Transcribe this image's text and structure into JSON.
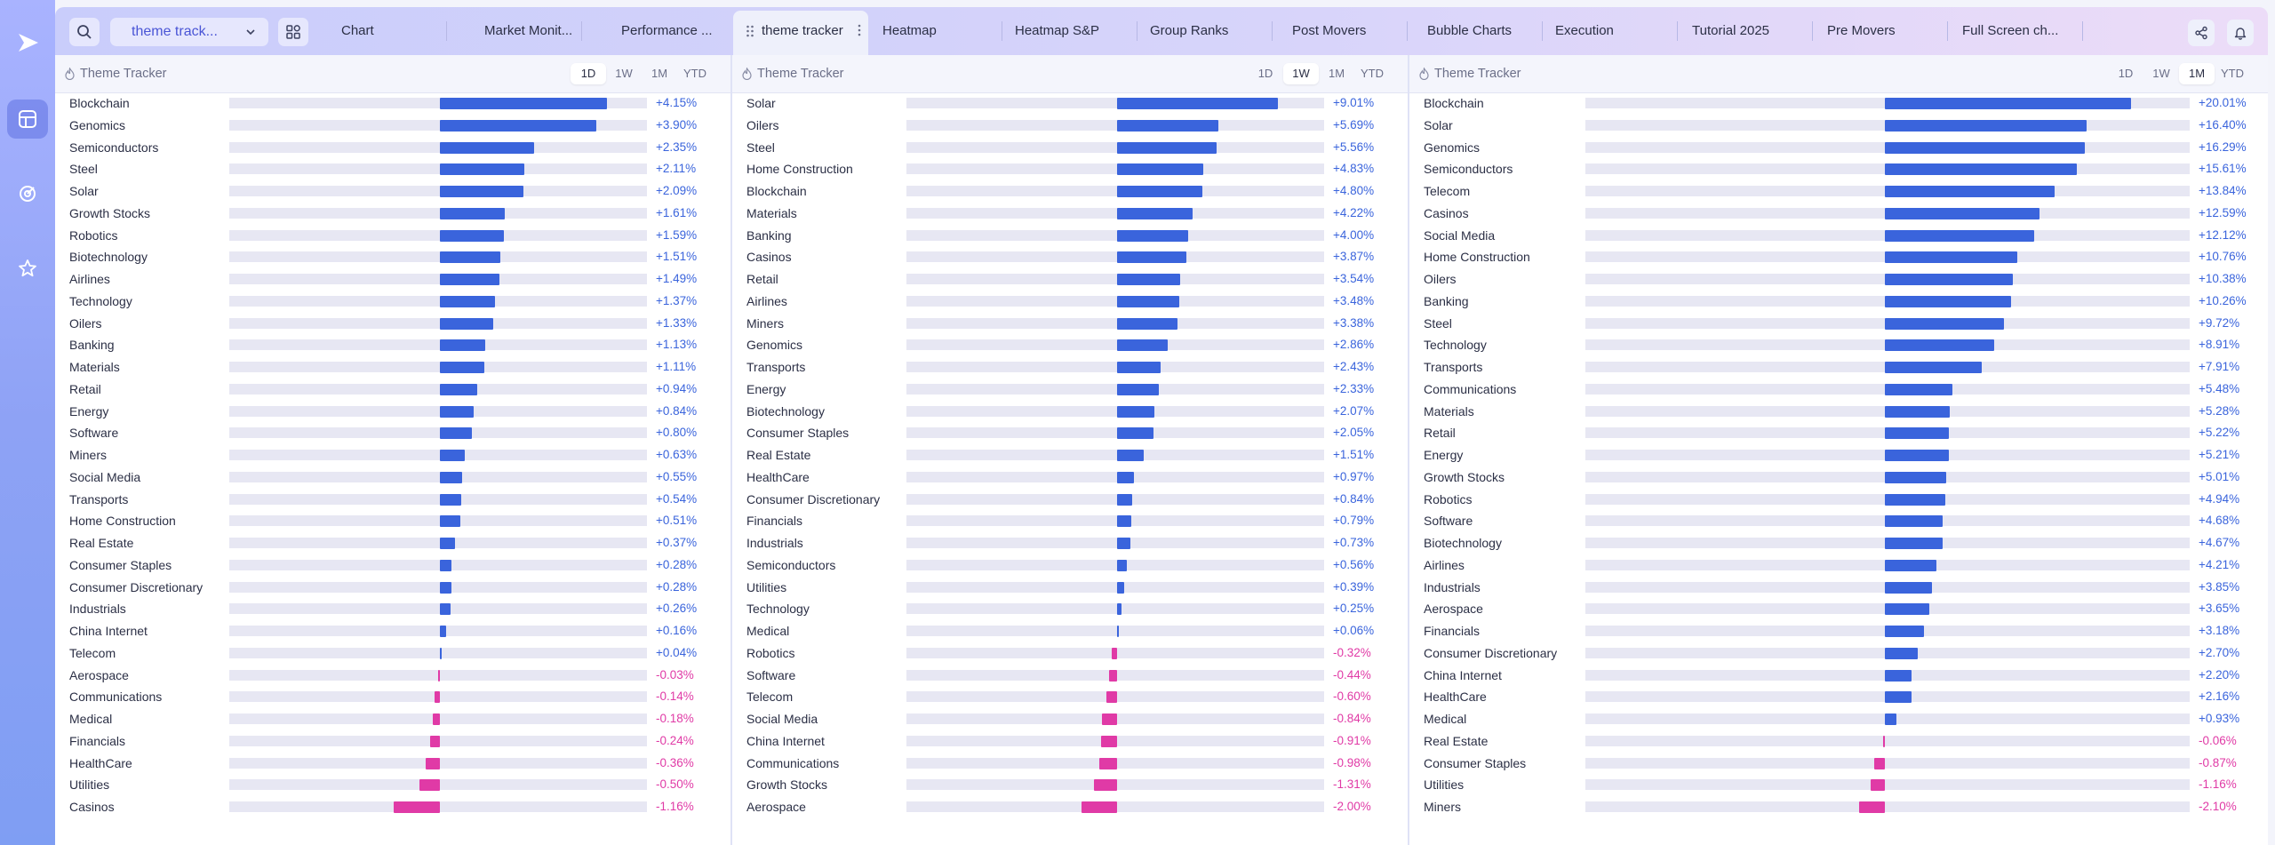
{
  "app": {
    "theme_selector": "theme track...",
    "tabs": [
      "Chart",
      "Market Monit...",
      "Performance ...",
      "theme tracker",
      "Heatmap",
      "Heatmap S&P",
      "Group Ranks",
      "Post Movers",
      "Bubble Charts",
      "Execution",
      "Tutorial 2025",
      "Pre Movers",
      "Full Screen ch..."
    ],
    "active_tab": "theme tracker"
  },
  "colors": {
    "positive": "#3a64dc",
    "negative": "#e03aa6",
    "track": "#e7e7f3"
  },
  "panels": [
    {
      "title": "Theme Tracker",
      "ranges": [
        "1D",
        "1W",
        "1M",
        "YTD"
      ],
      "selected_range": "1D",
      "scale_max": 5.0,
      "rows": [
        {
          "name": "Blockchain",
          "value": 4.15,
          "label": "+4.15%"
        },
        {
          "name": "Genomics",
          "value": 3.9,
          "label": "+3.90%"
        },
        {
          "name": "Semiconductors",
          "value": 2.35,
          "label": "+2.35%"
        },
        {
          "name": "Steel",
          "value": 2.11,
          "label": "+2.11%"
        },
        {
          "name": "Solar",
          "value": 2.09,
          "label": "+2.09%"
        },
        {
          "name": "Growth Stocks",
          "value": 1.61,
          "label": "+1.61%"
        },
        {
          "name": "Robotics",
          "value": 1.59,
          "label": "+1.59%"
        },
        {
          "name": "Biotechnology",
          "value": 1.51,
          "label": "+1.51%"
        },
        {
          "name": "Airlines",
          "value": 1.49,
          "label": "+1.49%"
        },
        {
          "name": "Technology",
          "value": 1.37,
          "label": "+1.37%"
        },
        {
          "name": "Oilers",
          "value": 1.33,
          "label": "+1.33%"
        },
        {
          "name": "Banking",
          "value": 1.13,
          "label": "+1.13%"
        },
        {
          "name": "Materials",
          "value": 1.11,
          "label": "+1.11%"
        },
        {
          "name": "Retail",
          "value": 0.94,
          "label": "+0.94%"
        },
        {
          "name": "Energy",
          "value": 0.84,
          "label": "+0.84%"
        },
        {
          "name": "Software",
          "value": 0.8,
          "label": "+0.80%"
        },
        {
          "name": "Miners",
          "value": 0.63,
          "label": "+0.63%"
        },
        {
          "name": "Social Media",
          "value": 0.55,
          "label": "+0.55%"
        },
        {
          "name": "Transports",
          "value": 0.54,
          "label": "+0.54%"
        },
        {
          "name": "Home Construction",
          "value": 0.51,
          "label": "+0.51%"
        },
        {
          "name": "Real Estate",
          "value": 0.37,
          "label": "+0.37%"
        },
        {
          "name": "Consumer Staples",
          "value": 0.28,
          "label": "+0.28%"
        },
        {
          "name": "Consumer Discretionary",
          "value": 0.28,
          "label": "+0.28%"
        },
        {
          "name": "Industrials",
          "value": 0.26,
          "label": "+0.26%"
        },
        {
          "name": "China Internet",
          "value": 0.16,
          "label": "+0.16%"
        },
        {
          "name": "Telecom",
          "value": 0.04,
          "label": "+0.04%"
        },
        {
          "name": "Aerospace",
          "value": -0.03,
          "label": "-0.03%"
        },
        {
          "name": "Communications",
          "value": -0.14,
          "label": "-0.14%"
        },
        {
          "name": "Medical",
          "value": -0.18,
          "label": "-0.18%"
        },
        {
          "name": "Financials",
          "value": -0.24,
          "label": "-0.24%"
        },
        {
          "name": "HealthCare",
          "value": -0.36,
          "label": "-0.36%"
        },
        {
          "name": "Utilities",
          "value": -0.5,
          "label": "-0.50%"
        },
        {
          "name": "Casinos",
          "value": -1.16,
          "label": "-1.16%"
        }
      ]
    },
    {
      "title": "Theme Tracker",
      "ranges": [
        "1D",
        "1W",
        "1M",
        "YTD"
      ],
      "selected_range": "1W",
      "scale_max": 11.0,
      "rows": [
        {
          "name": "Solar",
          "value": 9.01,
          "label": "+9.01%"
        },
        {
          "name": "Oilers",
          "value": 5.69,
          "label": "+5.69%"
        },
        {
          "name": "Steel",
          "value": 5.56,
          "label": "+5.56%"
        },
        {
          "name": "Home Construction",
          "value": 4.83,
          "label": "+4.83%"
        },
        {
          "name": "Blockchain",
          "value": 4.8,
          "label": "+4.80%"
        },
        {
          "name": "Materials",
          "value": 4.22,
          "label": "+4.22%"
        },
        {
          "name": "Banking",
          "value": 4.0,
          "label": "+4.00%"
        },
        {
          "name": "Casinos",
          "value": 3.87,
          "label": "+3.87%"
        },
        {
          "name": "Retail",
          "value": 3.54,
          "label": "+3.54%"
        },
        {
          "name": "Airlines",
          "value": 3.48,
          "label": "+3.48%"
        },
        {
          "name": "Miners",
          "value": 3.38,
          "label": "+3.38%"
        },
        {
          "name": "Genomics",
          "value": 2.86,
          "label": "+2.86%"
        },
        {
          "name": "Transports",
          "value": 2.43,
          "label": "+2.43%"
        },
        {
          "name": "Energy",
          "value": 2.33,
          "label": "+2.33%"
        },
        {
          "name": "Biotechnology",
          "value": 2.07,
          "label": "+2.07%"
        },
        {
          "name": "Consumer Staples",
          "value": 2.05,
          "label": "+2.05%"
        },
        {
          "name": "Real Estate",
          "value": 1.51,
          "label": "+1.51%"
        },
        {
          "name": "HealthCare",
          "value": 0.97,
          "label": "+0.97%"
        },
        {
          "name": "Consumer Discretionary",
          "value": 0.84,
          "label": "+0.84%"
        },
        {
          "name": "Financials",
          "value": 0.79,
          "label": "+0.79%"
        },
        {
          "name": "Industrials",
          "value": 0.73,
          "label": "+0.73%"
        },
        {
          "name": "Semiconductors",
          "value": 0.56,
          "label": "+0.56%"
        },
        {
          "name": "Utilities",
          "value": 0.39,
          "label": "+0.39%"
        },
        {
          "name": "Technology",
          "value": 0.25,
          "label": "+0.25%"
        },
        {
          "name": "Medical",
          "value": 0.06,
          "label": "+0.06%"
        },
        {
          "name": "Robotics",
          "value": -0.32,
          "label": "-0.32%"
        },
        {
          "name": "Software",
          "value": -0.44,
          "label": "-0.44%"
        },
        {
          "name": "Telecom",
          "value": -0.6,
          "label": "-0.60%"
        },
        {
          "name": "Social Media",
          "value": -0.84,
          "label": "-0.84%"
        },
        {
          "name": "China Internet",
          "value": -0.91,
          "label": "-0.91%"
        },
        {
          "name": "Communications",
          "value": -0.98,
          "label": "-0.98%"
        },
        {
          "name": "Growth Stocks",
          "value": -1.31,
          "label": "-1.31%"
        },
        {
          "name": "Aerospace",
          "value": -2.0,
          "label": "-2.00%"
        }
      ]
    },
    {
      "title": "Theme Tracker",
      "ranges": [
        "1D",
        "1W",
        "1M",
        "YTD"
      ],
      "selected_range": "1M",
      "scale_max": 24.0,
      "rows": [
        {
          "name": "Blockchain",
          "value": 20.01,
          "label": "+20.01%"
        },
        {
          "name": "Solar",
          "value": 16.4,
          "label": "+16.40%"
        },
        {
          "name": "Genomics",
          "value": 16.29,
          "label": "+16.29%"
        },
        {
          "name": "Semiconductors",
          "value": 15.61,
          "label": "+15.61%"
        },
        {
          "name": "Telecom",
          "value": 13.84,
          "label": "+13.84%"
        },
        {
          "name": "Casinos",
          "value": 12.59,
          "label": "+12.59%"
        },
        {
          "name": "Social Media",
          "value": 12.12,
          "label": "+12.12%"
        },
        {
          "name": "Home Construction",
          "value": 10.76,
          "label": "+10.76%"
        },
        {
          "name": "Oilers",
          "value": 10.38,
          "label": "+10.38%"
        },
        {
          "name": "Banking",
          "value": 10.26,
          "label": "+10.26%"
        },
        {
          "name": "Steel",
          "value": 9.72,
          "label": "+9.72%"
        },
        {
          "name": "Technology",
          "value": 8.91,
          "label": "+8.91%"
        },
        {
          "name": "Transports",
          "value": 7.91,
          "label": "+7.91%"
        },
        {
          "name": "Communications",
          "value": 5.48,
          "label": "+5.48%"
        },
        {
          "name": "Materials",
          "value": 5.28,
          "label": "+5.28%"
        },
        {
          "name": "Retail",
          "value": 5.22,
          "label": "+5.22%"
        },
        {
          "name": "Energy",
          "value": 5.21,
          "label": "+5.21%"
        },
        {
          "name": "Growth Stocks",
          "value": 5.01,
          "label": "+5.01%"
        },
        {
          "name": "Robotics",
          "value": 4.94,
          "label": "+4.94%"
        },
        {
          "name": "Software",
          "value": 4.68,
          "label": "+4.68%"
        },
        {
          "name": "Biotechnology",
          "value": 4.67,
          "label": "+4.67%"
        },
        {
          "name": "Airlines",
          "value": 4.21,
          "label": "+4.21%"
        },
        {
          "name": "Industrials",
          "value": 3.85,
          "label": "+3.85%"
        },
        {
          "name": "Aerospace",
          "value": 3.65,
          "label": "+3.65%"
        },
        {
          "name": "Financials",
          "value": 3.18,
          "label": "+3.18%"
        },
        {
          "name": "Consumer Discretionary",
          "value": 2.7,
          "label": "+2.70%"
        },
        {
          "name": "China Internet",
          "value": 2.2,
          "label": "+2.20%"
        },
        {
          "name": "HealthCare",
          "value": 2.16,
          "label": "+2.16%"
        },
        {
          "name": "Medical",
          "value": 0.93,
          "label": "+0.93%"
        },
        {
          "name": "Real Estate",
          "value": -0.06,
          "label": "-0.06%"
        },
        {
          "name": "Consumer Staples",
          "value": -0.87,
          "label": "-0.87%"
        },
        {
          "name": "Utilities",
          "value": -1.16,
          "label": "-1.16%"
        },
        {
          "name": "Miners",
          "value": -2.1,
          "label": "-2.10%"
        }
      ]
    }
  ]
}
